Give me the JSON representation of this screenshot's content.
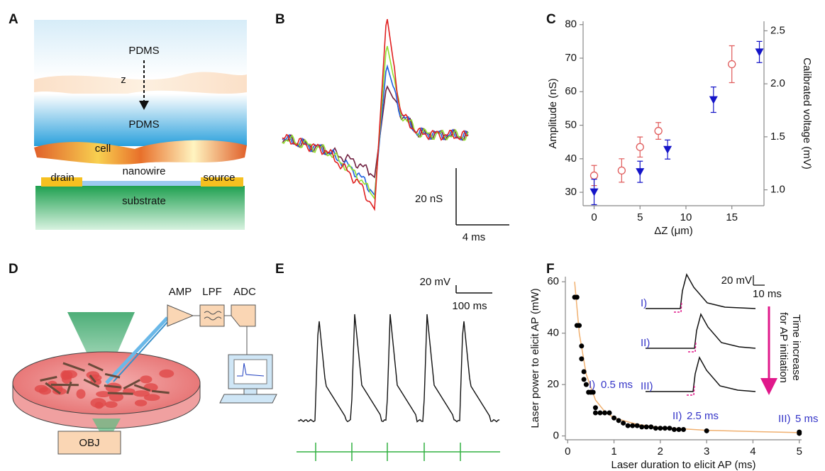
{
  "panel_labels": [
    "A",
    "B",
    "C",
    "D",
    "E",
    "F"
  ],
  "diagram_a": {
    "top_layer": "PDMS",
    "axis": "z",
    "bottom_layer": "PDMS",
    "cell": "cell",
    "drain": "drain",
    "nanowire": "nanowire",
    "source": "source",
    "substrate": "substrate"
  },
  "traces_b": {
    "scale_y": "20 nS",
    "scale_x": "4 ms"
  },
  "diagram_d": {
    "amp": "AMP",
    "lpf": "LPF",
    "adc": "ADC",
    "objective": "OBJ"
  },
  "trace_e": {
    "scale_y": "20 mV",
    "scale_x": "100 ms"
  },
  "chart_data": [
    {
      "type": "scatter",
      "xlabel": "ΔZ (μm)",
      "ylabel": "Amplitude (nS)",
      "y2label": "Calibrated voltage (mV)",
      "xlim": [
        -1.2,
        18.5
      ],
      "xticks": [
        0,
        5,
        10,
        15
      ],
      "ylim": [
        26,
        81
      ],
      "yticks": [
        30,
        40,
        50,
        60,
        70,
        80
      ],
      "y2lim": [
        0.85,
        2.59
      ],
      "y2ticks": [
        {
          "value": 1,
          "label": "1.0"
        },
        1.5,
        {
          "value": 2,
          "label": "2.0"
        },
        2.5
      ],
      "series": [
        {
          "color": "#e05a5a",
          "marker": "circle-open",
          "x": [
            0,
            3,
            5,
            7,
            15
          ],
          "values": [
            35,
            36.5,
            43.5,
            48.3,
            68.2
          ],
          "errors": [
            3,
            3.5,
            3,
            2.5,
            5.5
          ]
        },
        {
          "color": "#1414c8",
          "marker": "triangle-down",
          "axis": "y2",
          "x": [
            0,
            5,
            8,
            13,
            18
          ],
          "values": [
            0.98,
            1.17,
            1.38,
            1.85,
            2.3
          ],
          "errors": [
            0.12,
            0.1,
            0.09,
            0.12,
            0.1
          ]
        }
      ]
    },
    {
      "type": "scatter",
      "xlabel": "Laser duration to elicit AP (ms)",
      "ylabel": "Laser power to elicit AP (mW)",
      "xlim": [
        -0.05,
        5.05
      ],
      "xticks": [
        0,
        1,
        2,
        3,
        4,
        5
      ],
      "ylim": [
        -1.5,
        62
      ],
      "yticks": [
        0,
        20,
        40,
        60
      ],
      "series": [
        {
          "color": "#f0b070",
          "marker": "line",
          "x": [
            0.15,
            0.25,
            0.4,
            0.6,
            0.8,
            1,
            1.5,
            2,
            3,
            4,
            5
          ],
          "values": [
            60,
            40,
            24,
            14,
            9.5,
            7,
            4.5,
            3.3,
            2.2,
            1.7,
            1.3
          ]
        },
        {
          "color": "#000000",
          "marker": "dot",
          "x": [
            0.15,
            0.2,
            0.2,
            0.25,
            0.3,
            0.3,
            0.35,
            0.35,
            0.4,
            0.45,
            0.5,
            0.55,
            0.6,
            0.6,
            0.7,
            0.8,
            0.9,
            1.0,
            1.1,
            1.2,
            1.3,
            1.4,
            1.5,
            1.6,
            1.7,
            1.8,
            1.9,
            2.0,
            2.1,
            2.2,
            2.3,
            2.4,
            2.5,
            3.0,
            5.0,
            5.0
          ],
          "values": [
            54,
            54,
            43,
            43,
            35,
            30,
            25,
            22,
            20,
            17,
            17,
            17,
            11,
            9,
            9,
            9,
            9,
            7,
            6,
            5,
            4,
            4,
            4,
            3.5,
            3.5,
            3.5,
            3,
            3,
            3,
            3,
            2.5,
            2.5,
            2.5,
            2,
            1.5,
            1
          ]
        }
      ],
      "annotations": [
        "I)",
        "0.5 ms",
        "II)",
        "2.5 ms",
        "III)",
        "5 ms"
      ],
      "inset": {
        "labels": [
          "I)",
          "II)",
          "III)"
        ],
        "scale_y": "20 mV",
        "scale_x": "10 ms",
        "arrow_text": [
          "Time increase",
          "for AP initiation"
        ]
      }
    }
  ]
}
